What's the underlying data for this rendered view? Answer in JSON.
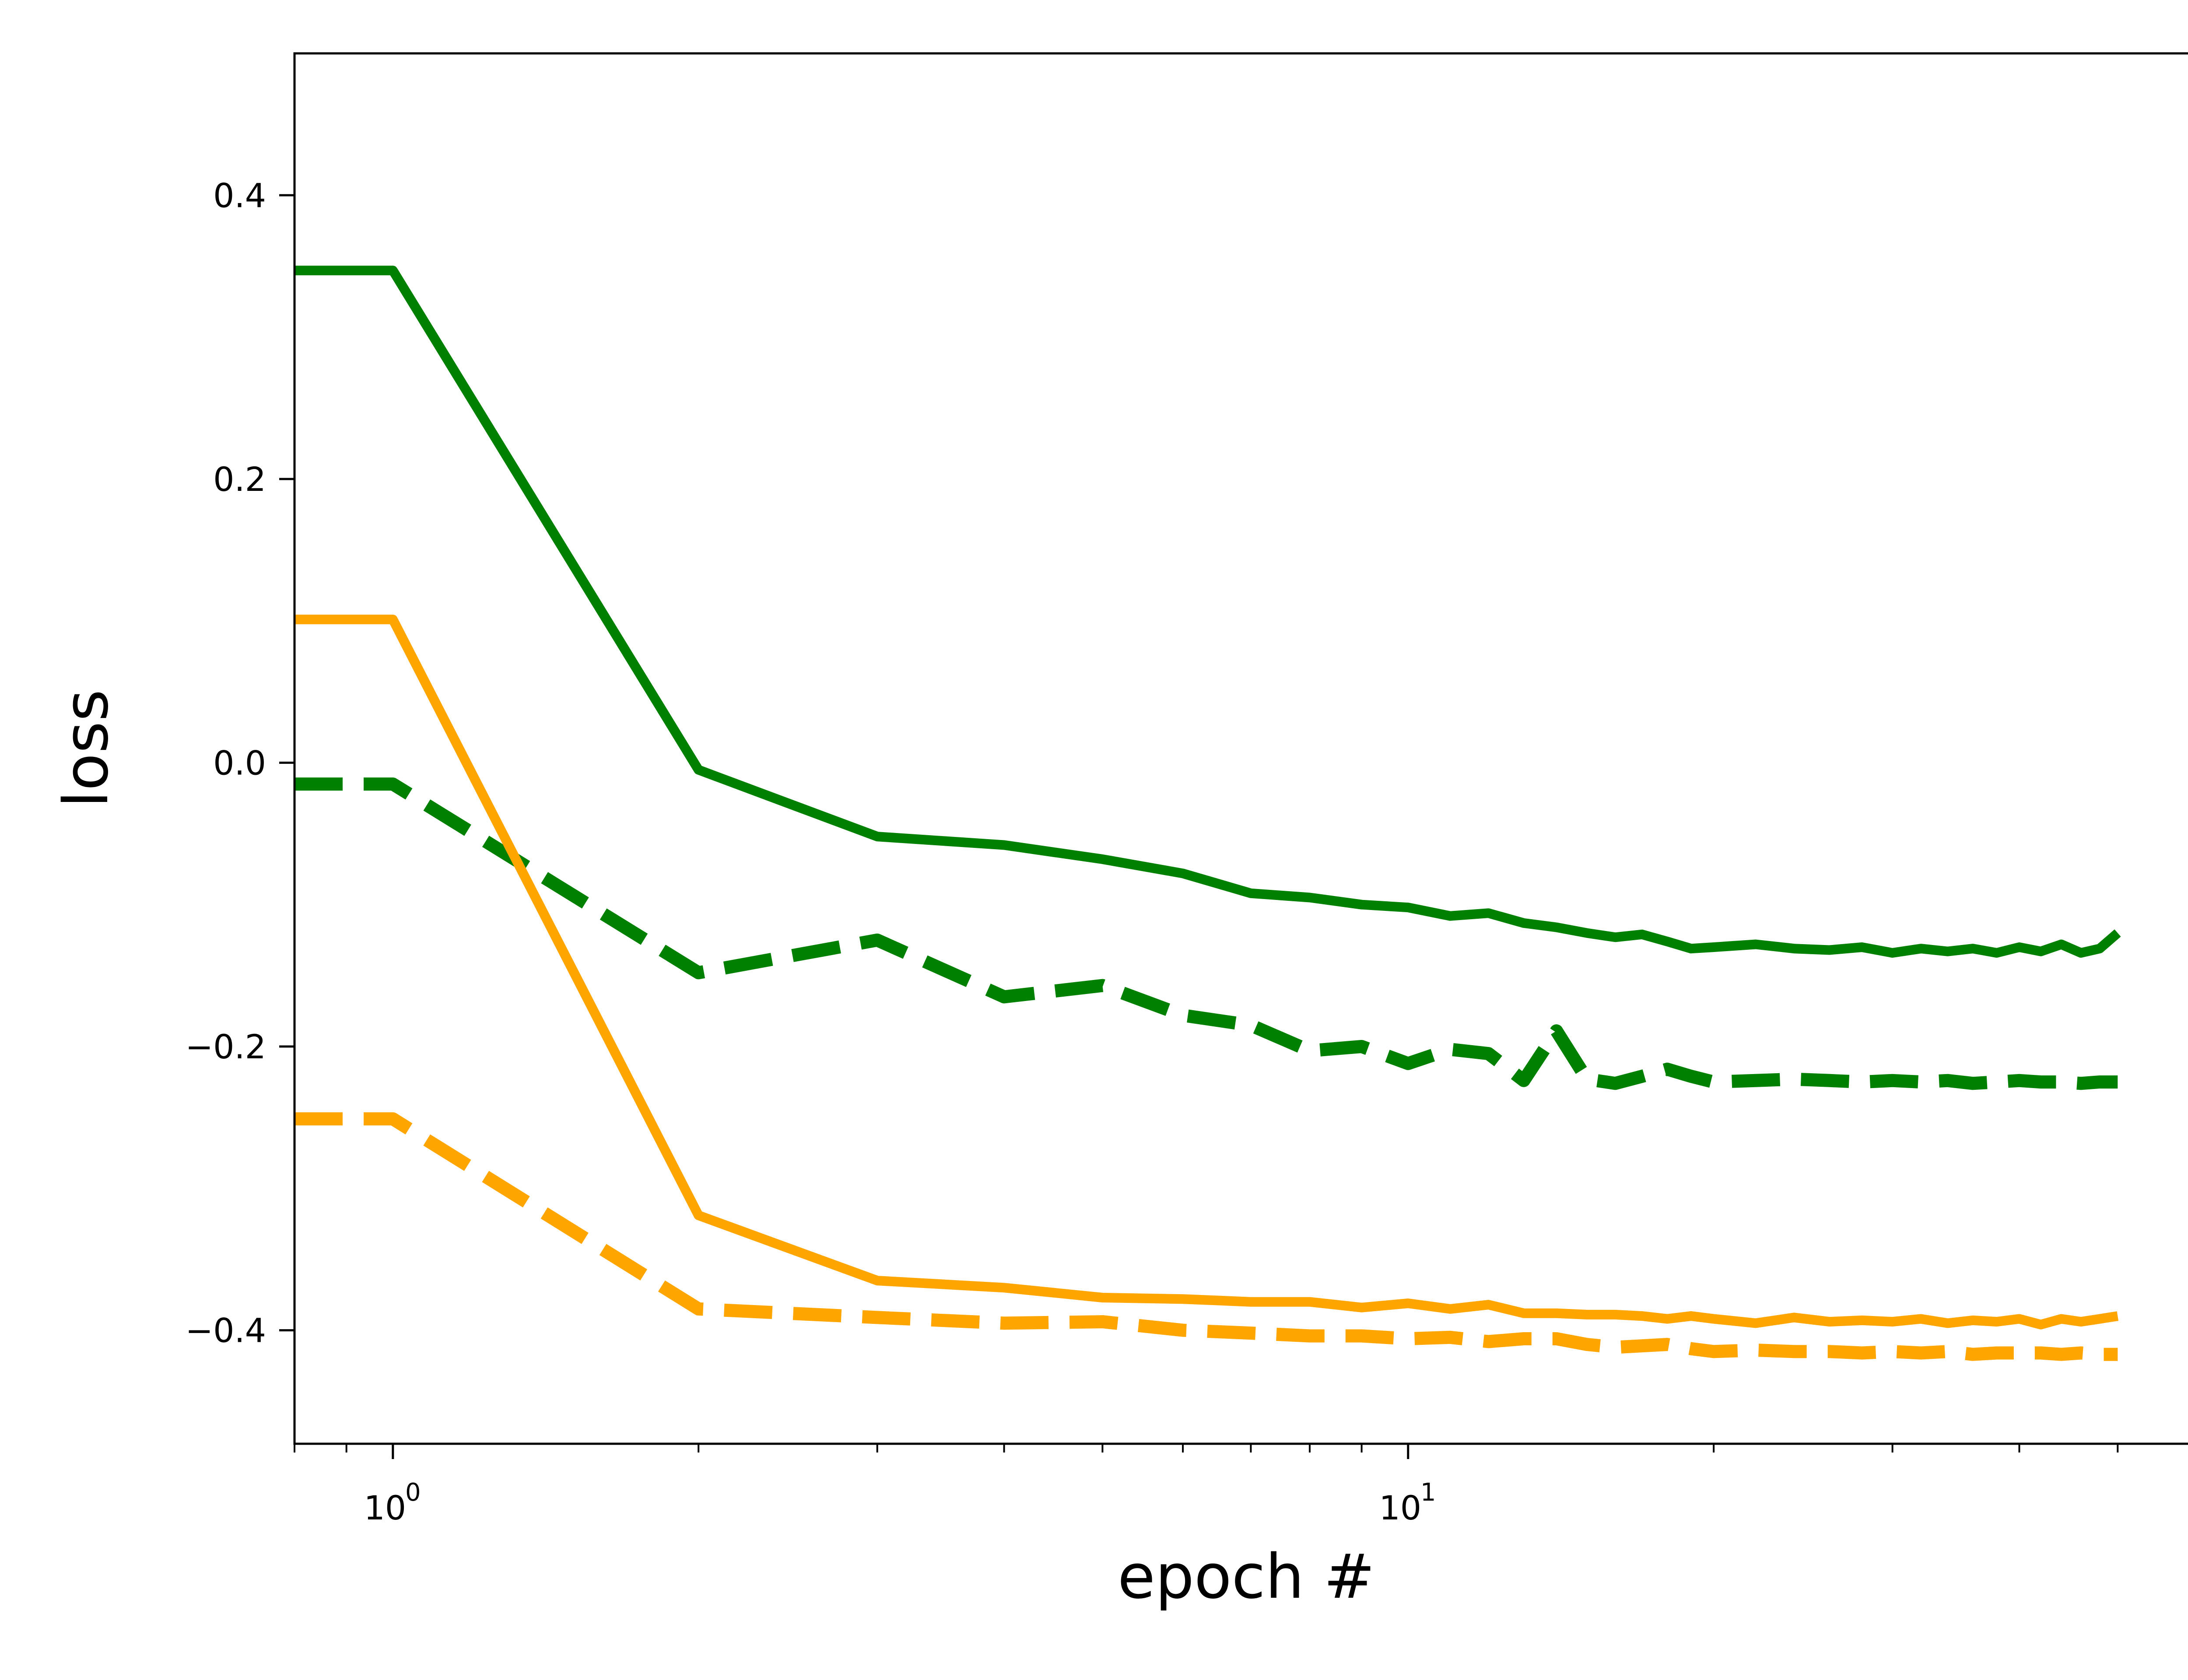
{
  "chart_data": {
    "type": "line",
    "xlabel": "epoch #",
    "ylabel": "loss",
    "xscale": "log",
    "xlim": [
      0.8,
      60
    ],
    "ylim": [
      -0.48,
      0.5
    ],
    "grid": false,
    "legend": "none",
    "x_major_ticks": [
      {
        "mantissa": "10",
        "exponent": "0",
        "value": 1
      },
      {
        "mantissa": "10",
        "exponent": "1",
        "value": 10
      }
    ],
    "y_ticks": [
      {
        "value": 0.4,
        "label": "0.4"
      },
      {
        "value": 0.2,
        "label": "0.2"
      },
      {
        "value": 0.0,
        "label": "0.0"
      },
      {
        "value": -0.2,
        "label": "−0.2"
      },
      {
        "value": -0.4,
        "label": "−0.4"
      }
    ],
    "x": [
      0.8,
      1,
      2,
      3,
      4,
      5,
      6,
      7,
      8,
      9,
      10,
      11,
      12,
      13,
      14,
      15,
      16,
      17,
      18,
      19,
      20,
      22,
      24,
      26,
      28,
      30,
      32,
      34,
      36,
      38,
      40,
      42,
      44,
      46,
      48,
      50
    ],
    "series": [
      {
        "color": "#008000",
        "style": "solid",
        "values": [
          0.347,
          0.347,
          -0.005,
          -0.052,
          -0.058,
          -0.068,
          -0.078,
          -0.092,
          -0.095,
          -0.1,
          -0.102,
          -0.108,
          -0.106,
          -0.113,
          -0.116,
          -0.12,
          -0.123,
          -0.121,
          -0.126,
          -0.131,
          -0.13,
          -0.128,
          -0.131,
          -0.132,
          -0.13,
          -0.134,
          -0.131,
          -0.133,
          -0.131,
          -0.134,
          -0.13,
          -0.133,
          -0.128,
          -0.134,
          -0.131,
          -0.12
        ]
      },
      {
        "color": "#008000",
        "style": "dashed",
        "values": [
          -0.015,
          -0.015,
          -0.148,
          -0.125,
          -0.165,
          -0.157,
          -0.178,
          -0.185,
          -0.203,
          -0.2,
          -0.212,
          -0.202,
          -0.205,
          -0.224,
          -0.189,
          -0.223,
          -0.226,
          -0.221,
          -0.216,
          -0.221,
          -0.225,
          -0.224,
          -0.223,
          -0.224,
          -0.225,
          -0.224,
          -0.225,
          -0.224,
          -0.226,
          -0.225,
          -0.224,
          -0.225,
          -0.225,
          -0.226,
          -0.225,
          -0.225
        ]
      },
      {
        "color": "#FFA500",
        "style": "solid",
        "values": [
          0.101,
          0.101,
          -0.319,
          -0.365,
          -0.37,
          -0.377,
          -0.378,
          -0.38,
          -0.38,
          -0.384,
          -0.381,
          -0.385,
          -0.382,
          -0.388,
          -0.388,
          -0.389,
          -0.389,
          -0.39,
          -0.392,
          -0.39,
          -0.392,
          -0.395,
          -0.391,
          -0.394,
          -0.393,
          -0.394,
          -0.392,
          -0.395,
          -0.393,
          -0.394,
          -0.392,
          -0.396,
          -0.392,
          -0.394,
          -0.392,
          -0.39
        ]
      },
      {
        "color": "#FFA500",
        "style": "dashed",
        "values": [
          -0.251,
          -0.251,
          -0.385,
          -0.391,
          -0.395,
          -0.394,
          -0.4,
          -0.402,
          -0.404,
          -0.404,
          -0.406,
          -0.405,
          -0.408,
          -0.406,
          -0.406,
          -0.41,
          -0.412,
          -0.411,
          -0.41,
          -0.413,
          -0.415,
          -0.414,
          -0.415,
          -0.415,
          -0.416,
          -0.415,
          -0.416,
          -0.415,
          -0.417,
          -0.416,
          -0.416,
          -0.416,
          -0.417,
          -0.416,
          -0.417,
          -0.417
        ]
      }
    ]
  }
}
